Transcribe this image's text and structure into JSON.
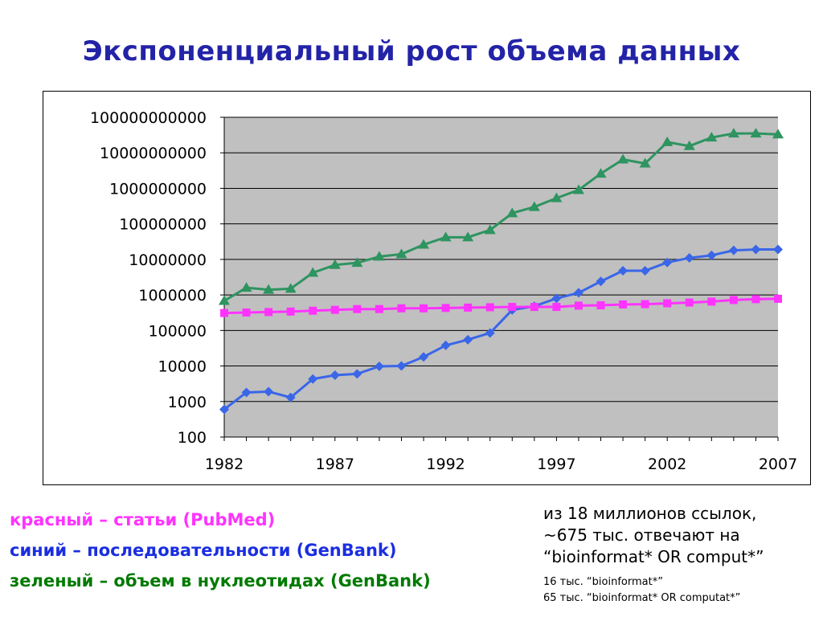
{
  "title": "Экспоненциальный рост объема данных",
  "colors": {
    "title": "#2323a8",
    "plot_bg": "#c0c0c0",
    "gridline": "#000000",
    "green_series": "#2e9460",
    "blue_series": "#3a66e8",
    "magenta_series": "#ff33ff"
  },
  "legend": {
    "red": "красный – статьи (PubMed)",
    "blue": "синий – последовательности (GenBank)",
    "green": "зеленый – объем в нуклеотидах (GenBank)"
  },
  "note": {
    "line1": "из 18 миллионов ссылок,",
    "line2": "~675 тыс. отвечают на",
    "line3": "“bioinformat* OR comput*”",
    "small1": "16 тыс. “bioinformat*”",
    "small2": "65 тыс. “bioinformat* OR computat*”"
  },
  "chart_data": {
    "type": "line",
    "title": "Экспоненциальный рост объема данных",
    "x_scale": "linear",
    "y_scale": "log",
    "xlim": [
      1982,
      2007
    ],
    "ylim": [
      100,
      100000000000
    ],
    "x_ticks": [
      1982,
      1987,
      1992,
      1997,
      2002,
      2007
    ],
    "x_tick_labels": [
      "1982",
      "1987",
      "1992",
      "1997",
      "2002",
      "2007"
    ],
    "y_ticks": [
      100,
      1000,
      10000,
      100000,
      1000000,
      10000000,
      100000000,
      1000000000,
      10000000000,
      100000000000
    ],
    "y_tick_labels": [
      "100",
      "1000",
      "10000",
      "100000",
      "1000000",
      "10000000",
      "100000000",
      "1000000000",
      "10000000000",
      "100000000000"
    ],
    "grid": "horizontal",
    "x": [
      1982,
      1983,
      1984,
      1985,
      1986,
      1987,
      1988,
      1989,
      1990,
      1991,
      1992,
      1993,
      1994,
      1995,
      1996,
      1997,
      1998,
      1999,
      2000,
      2001,
      2002,
      2003,
      2004,
      2005,
      2006,
      2007
    ],
    "series": [
      {
        "color": "#2e9460",
        "marker": "triangle",
        "values": [
          680000,
          1600000,
          1400000,
          1500000,
          4200000,
          7000000,
          8000000,
          12000000,
          14000000,
          26000000,
          42000000,
          42000000,
          67000000,
          200000000,
          300000000,
          530000000,
          900000000,
          2600000000,
          6500000000,
          5000000000,
          20000000000,
          15500000000,
          27000000000,
          35000000000,
          35000000000,
          33000000000
        ]
      },
      {
        "color": "#3a66e8",
        "marker": "diamond",
        "values": [
          600,
          1800,
          1900,
          1300,
          4300,
          5500,
          6000,
          9800,
          10000,
          18000,
          38000,
          55000,
          85000,
          380000,
          480000,
          800000,
          1150000,
          2400000,
          4800000,
          4800000,
          8200000,
          11000000,
          13000000,
          18000000,
          19000000,
          19000000
        ]
      },
      {
        "color": "#ff33ff",
        "marker": "square",
        "values": [
          310000,
          320000,
          330000,
          340000,
          360000,
          380000,
          400000,
          400000,
          420000,
          420000,
          430000,
          440000,
          450000,
          460000,
          460000,
          460000,
          500000,
          510000,
          540000,
          550000,
          580000,
          610000,
          650000,
          720000,
          760000,
          780000
        ]
      }
    ]
  }
}
